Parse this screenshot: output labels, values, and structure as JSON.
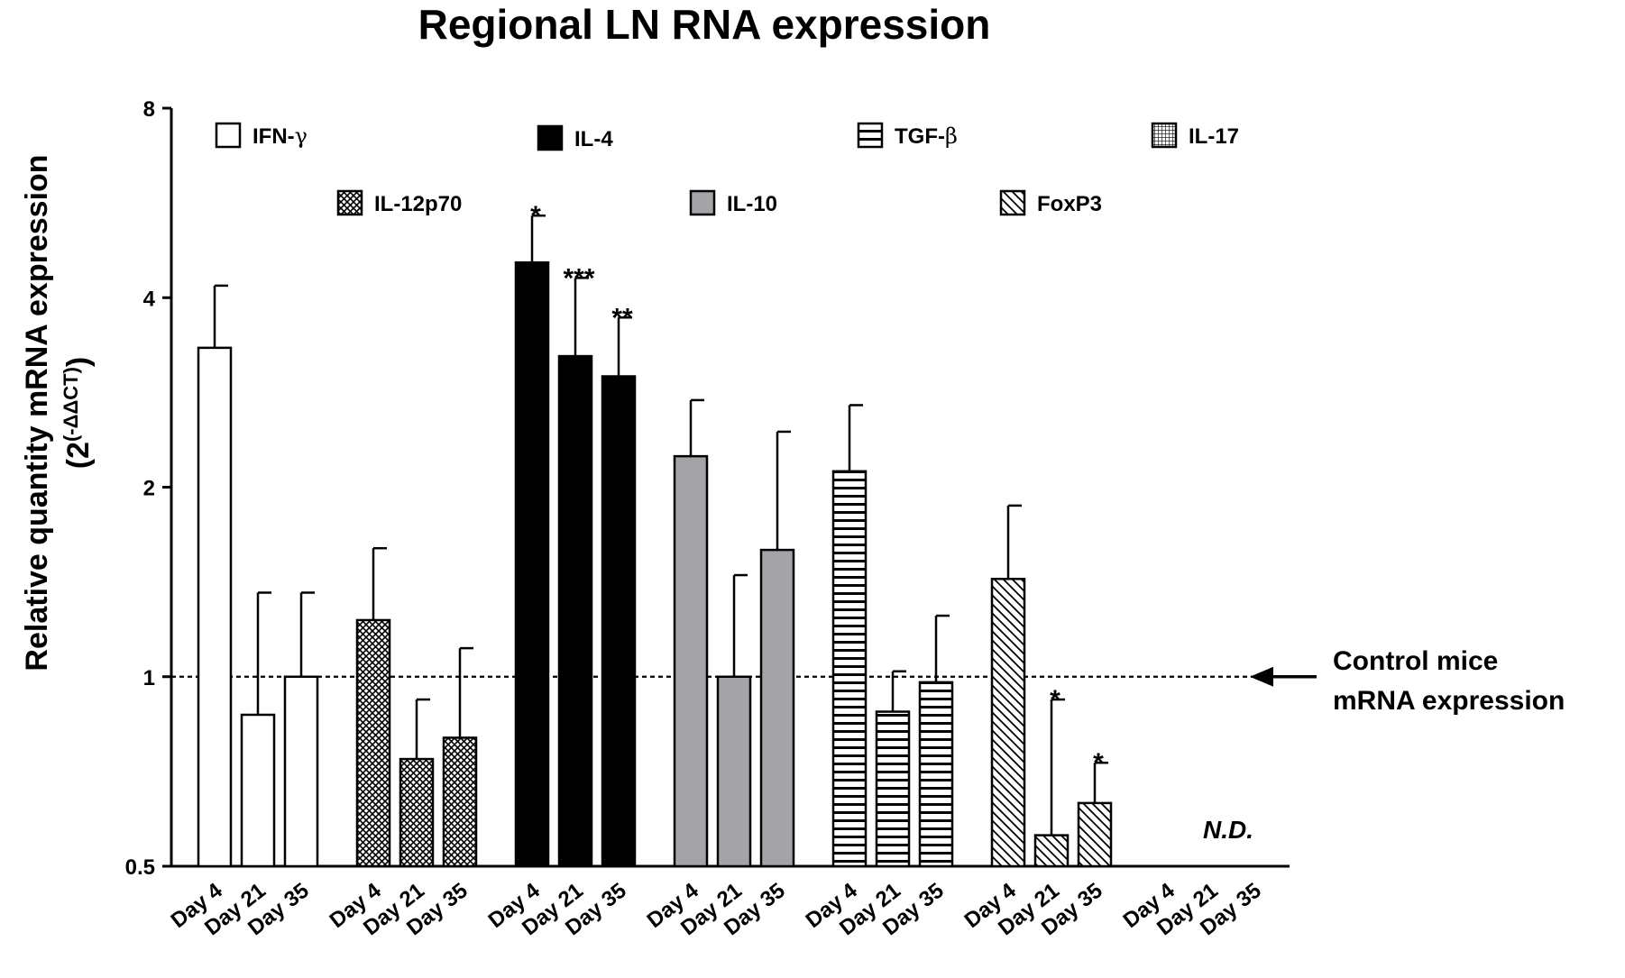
{
  "chart_data": {
    "type": "bar",
    "title": "Regional LN RNA expression",
    "ylabel_main": "Relative quantity mRNA expression",
    "ylabel_base": "(2",
    "ylabel_exp": "(-ΔΔCT)",
    "ylabel_close": ")",
    "yscale": "log2",
    "ylim": [
      0.5,
      8
    ],
    "yticks": [
      "0.5",
      "1",
      "2",
      "4",
      "8"
    ],
    "reference_line": 1,
    "annotation": [
      "Control mice",
      "mRNA expression"
    ],
    "nd_label": "N.D.",
    "x_labels": [
      "Day 4",
      "Day 21",
      "Day 35"
    ],
    "legend_position": "top",
    "series": [
      {
        "name": "IFN-γ",
        "legend_text": "IFN-",
        "legend_symbol": "γ",
        "pattern": "white",
        "values": [
          3.33,
          0.87,
          1.0
        ],
        "errors": [
          4.18,
          1.36,
          1.36
        ],
        "sig": [
          "",
          "",
          ""
        ]
      },
      {
        "name": "IL-12p70",
        "legend_text": "IL-12p70",
        "legend_symbol": "",
        "pattern": "crosshatch",
        "values": [
          1.23,
          0.74,
          0.8
        ],
        "errors": [
          1.6,
          0.92,
          1.11
        ],
        "sig": [
          "",
          "",
          ""
        ]
      },
      {
        "name": "IL-4",
        "legend_text": "IL-4",
        "legend_symbol": "",
        "pattern": "black",
        "values": [
          4.55,
          3.23,
          3.0
        ],
        "errors": [
          5.4,
          4.3,
          3.72
        ],
        "sig": [
          "*",
          "***",
          "**"
        ]
      },
      {
        "name": "IL-10",
        "legend_text": "IL-10",
        "legend_symbol": "",
        "pattern": "gray",
        "values": [
          2.24,
          1.0,
          1.59
        ],
        "errors": [
          2.75,
          1.45,
          2.45
        ],
        "sig": [
          "",
          "",
          ""
        ]
      },
      {
        "name": "TGF-β",
        "legend_text": "TGF-",
        "legend_symbol": "β",
        "pattern": "horizontal",
        "values": [
          2.12,
          0.88,
          0.98
        ],
        "errors": [
          2.7,
          1.02,
          1.25
        ],
        "sig": [
          "",
          "",
          ""
        ]
      },
      {
        "name": "FoxP3",
        "legend_text": "FoxP3",
        "legend_symbol": "",
        "pattern": "diagonal",
        "values": [
          1.43,
          0.56,
          0.63
        ],
        "errors": [
          1.87,
          0.92,
          0.73
        ],
        "sig": [
          "",
          "*",
          "*"
        ]
      },
      {
        "name": "IL-17",
        "legend_text": "IL-17",
        "legend_symbol": "",
        "pattern": "grid",
        "values": [
          null,
          null,
          null
        ],
        "errors": [
          null,
          null,
          null
        ],
        "sig": [
          "",
          "",
          ""
        ]
      }
    ]
  }
}
